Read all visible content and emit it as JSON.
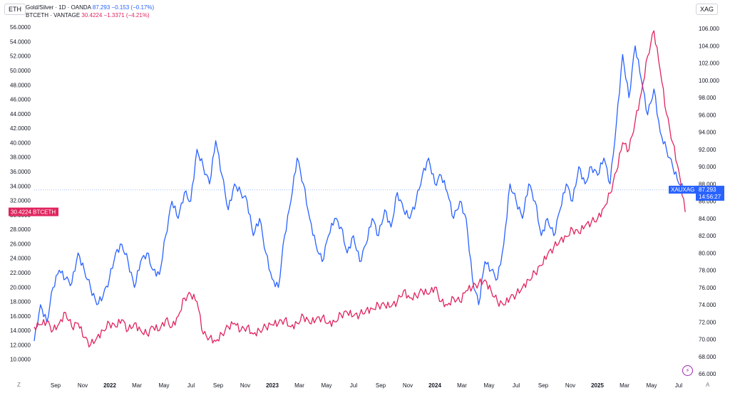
{
  "left_scale_label": "ETH",
  "right_scale_label": "XAG",
  "legend": {
    "gold_silver": {
      "name": "Gold/Silver · 1D · OANDA",
      "value": "87.293",
      "change": "−0.153 (−0.17%)"
    },
    "btceth": {
      "name": "BTCETH · VANTAGE",
      "value": "30.4224",
      "change": "−1.3371 (−4.21%)"
    }
  },
  "footer": {
    "left_icon": "Z",
    "right_icon": "A"
  },
  "lightning_icon": "lightning-icon",
  "chart_data": {
    "type": "line",
    "x_ticks": [
      "Sep",
      "Nov",
      "2022",
      "Mar",
      "May",
      "Jul",
      "Sep",
      "Nov",
      "2023",
      "Mar",
      "May",
      "Jul",
      "Sep",
      "Nov",
      "2024",
      "Mar",
      "May",
      "Jul",
      "Sep",
      "Nov",
      "2025",
      "Mar",
      "May",
      "Jul"
    ],
    "x_tick_bold": [
      false,
      false,
      true,
      false,
      false,
      false,
      false,
      false,
      true,
      false,
      false,
      false,
      false,
      false,
      true,
      false,
      false,
      false,
      false,
      false,
      true,
      false,
      false,
      false
    ],
    "left_axis": {
      "ylim": [
        8,
        57
      ],
      "ticks": [
        "10.0000",
        "12.0000",
        "14.0000",
        "16.0000",
        "18.0000",
        "20.0000",
        "22.0000",
        "24.0000",
        "26.0000",
        "28.0000",
        "30.0000",
        "32.0000",
        "34.0000",
        "36.0000",
        "38.0000",
        "40.0000",
        "42.0000",
        "44.0000",
        "46.0000",
        "48.0000",
        "50.0000",
        "52.0000",
        "54.0000",
        "56.0000"
      ]
    },
    "right_axis": {
      "ylim": [
        66,
        107
      ],
      "ticks": [
        "66.000",
        "68.000",
        "70.000",
        "72.000",
        "74.000",
        "76.000",
        "78.000",
        "80.000",
        "82.000",
        "84.000",
        "86.000",
        "88.000",
        "90.000",
        "92.000",
        "94.000",
        "96.000",
        "98.000",
        "100.000",
        "102.000",
        "104.000",
        "106.000"
      ]
    },
    "series": [
      {
        "name": "Gold/Silver",
        "axis": "right",
        "color": "#2962ff",
        "points": [
          [
            0,
            69.8
          ],
          [
            1,
            74
          ],
          [
            2,
            72
          ],
          [
            3,
            76
          ],
          [
            4,
            78
          ],
          [
            5,
            77
          ],
          [
            6,
            76.5
          ],
          [
            7,
            80
          ],
          [
            8,
            78
          ],
          [
            9,
            76
          ],
          [
            10,
            74
          ],
          [
            11,
            75
          ],
          [
            12,
            77
          ],
          [
            13,
            80
          ],
          [
            14,
            81
          ],
          [
            15,
            79
          ],
          [
            16,
            76
          ],
          [
            17,
            79
          ],
          [
            18,
            80
          ],
          [
            19,
            78
          ],
          [
            20,
            77.5
          ],
          [
            21,
            82
          ],
          [
            22,
            86
          ],
          [
            23,
            84
          ],
          [
            24,
            87
          ],
          [
            25,
            86
          ],
          [
            26,
            92
          ],
          [
            27,
            90
          ],
          [
            28,
            88
          ],
          [
            29,
            93
          ],
          [
            30,
            89
          ],
          [
            31,
            85
          ],
          [
            32,
            88
          ],
          [
            33,
            87
          ],
          [
            34,
            86
          ],
          [
            35,
            82
          ],
          [
            36,
            84
          ],
          [
            37,
            80
          ],
          [
            38,
            77
          ],
          [
            39,
            76
          ],
          [
            40,
            82
          ],
          [
            41,
            86
          ],
          [
            42,
            91
          ],
          [
            43,
            88
          ],
          [
            44,
            84
          ],
          [
            45,
            81
          ],
          [
            46,
            79
          ],
          [
            47,
            82
          ],
          [
            48,
            84
          ],
          [
            49,
            83
          ],
          [
            50,
            80
          ],
          [
            51,
            82
          ],
          [
            52,
            79
          ],
          [
            53,
            81
          ],
          [
            54,
            84
          ],
          [
            55,
            82
          ],
          [
            56,
            85
          ],
          [
            57,
            83
          ],
          [
            58,
            87
          ],
          [
            59,
            85
          ],
          [
            60,
            84
          ],
          [
            61,
            86
          ],
          [
            62,
            89
          ],
          [
            63,
            91
          ],
          [
            64,
            88
          ],
          [
            65,
            89
          ],
          [
            66,
            87
          ],
          [
            67,
            84
          ],
          [
            68,
            86
          ],
          [
            69,
            84
          ],
          [
            70,
            77
          ],
          [
            71,
            74
          ],
          [
            72,
            79
          ],
          [
            73,
            78
          ],
          [
            74,
            77
          ],
          [
            75,
            81
          ],
          [
            76,
            88
          ],
          [
            77,
            86
          ],
          [
            78,
            84
          ],
          [
            79,
            88
          ],
          [
            80,
            86
          ],
          [
            81,
            82
          ],
          [
            82,
            84
          ],
          [
            83,
            82
          ],
          [
            84,
            85
          ],
          [
            85,
            88
          ],
          [
            86,
            86
          ],
          [
            87,
            90
          ],
          [
            88,
            88
          ],
          [
            89,
            90
          ],
          [
            90,
            89
          ],
          [
            91,
            91
          ],
          [
            92,
            88
          ],
          [
            93,
            95
          ],
          [
            94,
            103
          ],
          [
            95,
            98
          ],
          [
            96,
            104
          ],
          [
            97,
            100
          ],
          [
            98,
            96
          ],
          [
            99,
            99
          ],
          [
            100,
            94
          ],
          [
            101,
            92
          ],
          [
            102,
            90
          ],
          [
            103,
            88
          ],
          [
            104,
            87.3
          ]
        ]
      },
      {
        "name": "BTCETH",
        "axis": "left",
        "color": "#e0245e",
        "points": [
          [
            0,
            14.5
          ],
          [
            1,
            14.8
          ],
          [
            2,
            15.2
          ],
          [
            3,
            14
          ],
          [
            4,
            15
          ],
          [
            5,
            16.5
          ],
          [
            6,
            14.5
          ],
          [
            7,
            15
          ],
          [
            8,
            13
          ],
          [
            9,
            12
          ],
          [
            10,
            13
          ],
          [
            11,
            14
          ],
          [
            12,
            15
          ],
          [
            13,
            14.5
          ],
          [
            14,
            15.5
          ],
          [
            15,
            14
          ],
          [
            16,
            15
          ],
          [
            17,
            14
          ],
          [
            18,
            13.5
          ],
          [
            19,
            14.5
          ],
          [
            20,
            14
          ],
          [
            21,
            15.5
          ],
          [
            22,
            14.5
          ],
          [
            23,
            16
          ],
          [
            24,
            18.5
          ],
          [
            25,
            19
          ],
          [
            26,
            18
          ],
          [
            27,
            13.5
          ],
          [
            28,
            13
          ],
          [
            29,
            12.5
          ],
          [
            30,
            13.5
          ],
          [
            31,
            14.5
          ],
          [
            32,
            15
          ],
          [
            33,
            14
          ],
          [
            34,
            14.5
          ],
          [
            35,
            13.5
          ],
          [
            36,
            14
          ],
          [
            37,
            14.5
          ],
          [
            38,
            14.8
          ],
          [
            39,
            15
          ],
          [
            40,
            15.5
          ],
          [
            41,
            14.5
          ],
          [
            42,
            15
          ],
          [
            43,
            16
          ],
          [
            44,
            15
          ],
          [
            45,
            15.5
          ],
          [
            46,
            15.8
          ],
          [
            47,
            15
          ],
          [
            48,
            15.2
          ],
          [
            49,
            16.2
          ],
          [
            50,
            16.5
          ],
          [
            51,
            16
          ],
          [
            52,
            16.2
          ],
          [
            53,
            16.8
          ],
          [
            54,
            17
          ],
          [
            55,
            17.5
          ],
          [
            56,
            17.5
          ],
          [
            57,
            17.3
          ],
          [
            58,
            18
          ],
          [
            59,
            19.5
          ],
          [
            60,
            18.5
          ],
          [
            61,
            18.8
          ],
          [
            62,
            19.5
          ],
          [
            63,
            19
          ],
          [
            64,
            20
          ],
          [
            65,
            18
          ],
          [
            66,
            17.5
          ],
          [
            67,
            18.5
          ],
          [
            68,
            18
          ],
          [
            69,
            19.5
          ],
          [
            70,
            20
          ],
          [
            71,
            20.5
          ],
          [
            72,
            21
          ],
          [
            73,
            19.5
          ],
          [
            74,
            18
          ],
          [
            75,
            17.5
          ],
          [
            76,
            18.5
          ],
          [
            77,
            19
          ],
          [
            78,
            20
          ],
          [
            79,
            21
          ],
          [
            80,
            22
          ],
          [
            81,
            23
          ],
          [
            82,
            24.5
          ],
          [
            83,
            25.5
          ],
          [
            84,
            26.5
          ],
          [
            85,
            27
          ],
          [
            86,
            28
          ],
          [
            87,
            27.5
          ],
          [
            88,
            28.5
          ],
          [
            89,
            29
          ],
          [
            90,
            29.5
          ],
          [
            91,
            31
          ],
          [
            92,
            33
          ],
          [
            93,
            36
          ],
          [
            94,
            40
          ],
          [
            95,
            39
          ],
          [
            96,
            43
          ],
          [
            97,
            47
          ],
          [
            98,
            52
          ],
          [
            99,
            55.5
          ],
          [
            100,
            50
          ],
          [
            101,
            44
          ],
          [
            102,
            40
          ],
          [
            103,
            36
          ],
          [
            104,
            30.4
          ]
        ]
      }
    ],
    "last_values": {
      "left": "30.4224",
      "left_label": "BTCETH",
      "right": "87.293",
      "right_label": "XAUXAG",
      "right_time": "14:56:27"
    }
  }
}
